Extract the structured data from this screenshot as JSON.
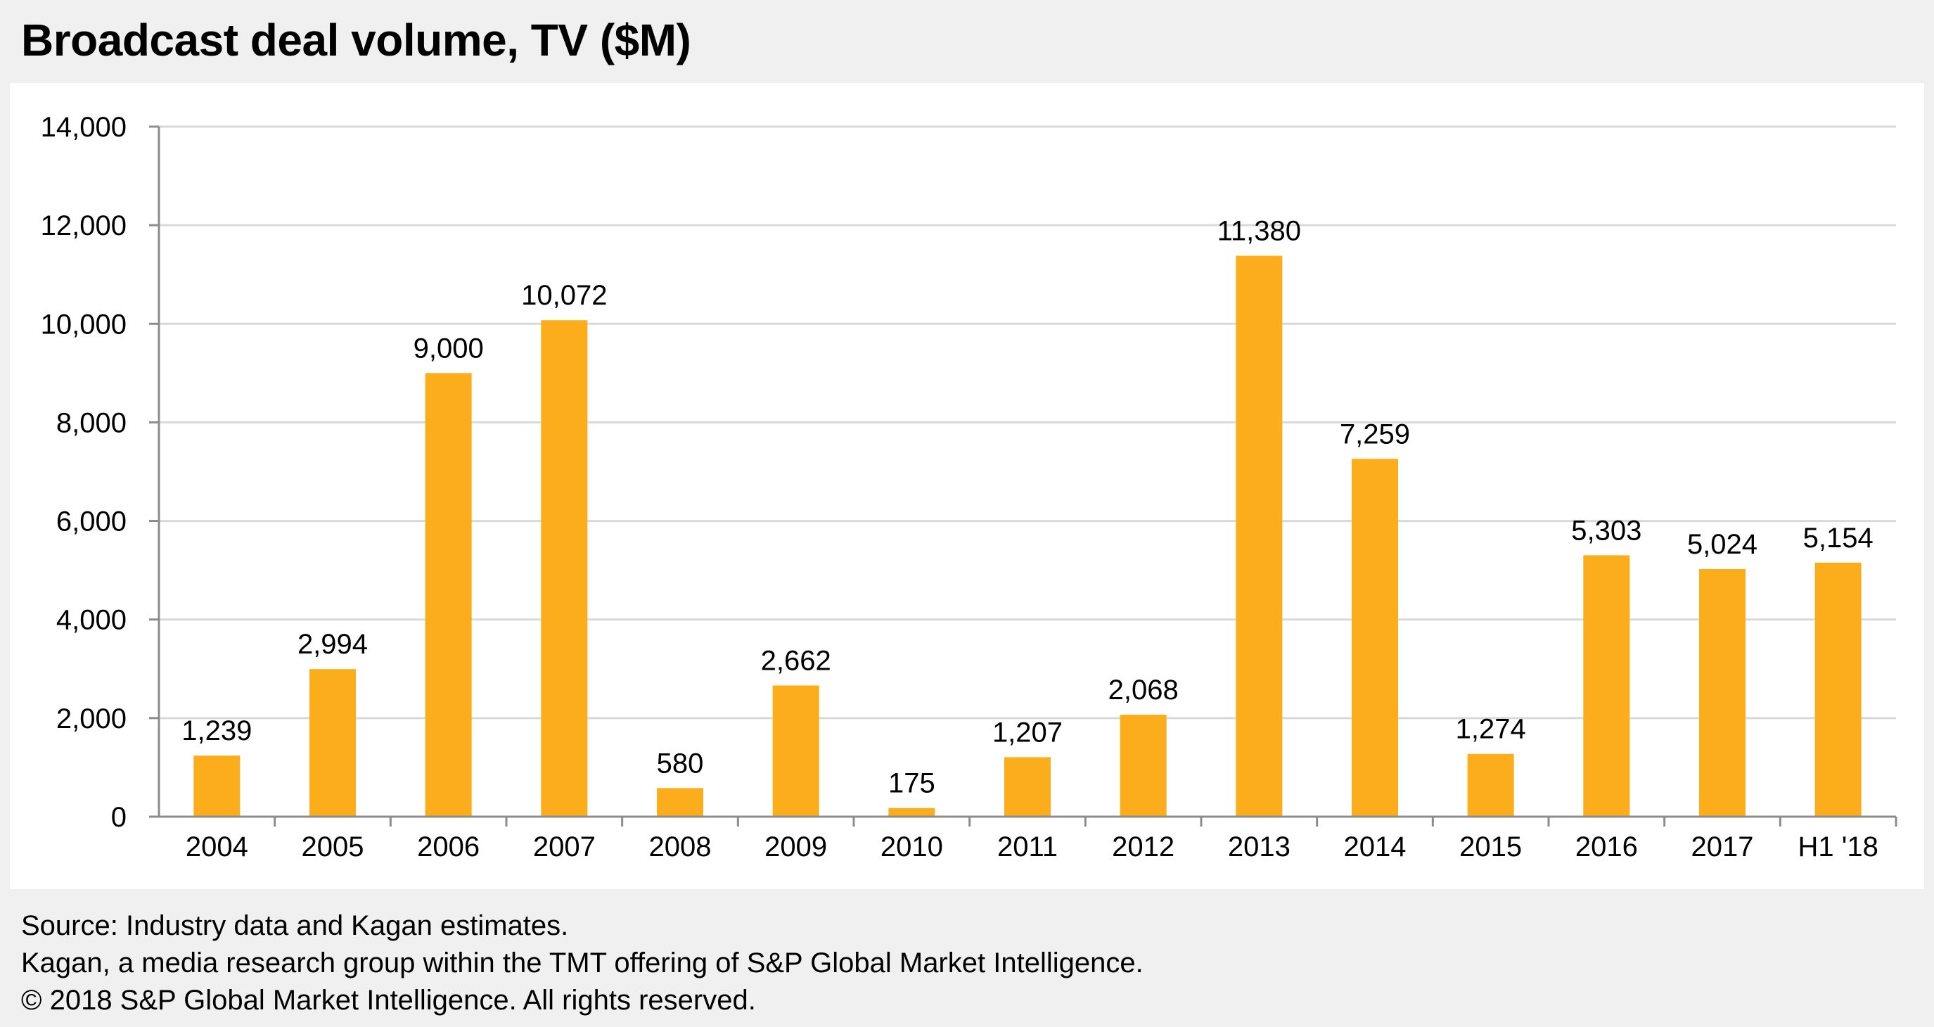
{
  "title": "Broadcast deal volume, TV ($M)",
  "footer": {
    "line1": "Source: Industry data and Kagan estimates.",
    "line2": "Kagan, a media research group within the TMT offering of S&P Global Market Intelligence.",
    "line3": "© 2018 S&P Global Market Intelligence. All rights reserved."
  },
  "colors": {
    "bar": "#fcad1c",
    "grid": "#d9d9d9",
    "axis": "#8c8c8c",
    "background": "#f0f0f0",
    "panel": "#ffffff"
  },
  "chart_data": {
    "type": "bar",
    "title": "Broadcast deal volume, TV ($M)",
    "categories": [
      "2004",
      "2005",
      "2006",
      "2007",
      "2008",
      "2009",
      "2010",
      "2011",
      "2012",
      "2013",
      "2014",
      "2015",
      "2016",
      "2017",
      "H1 '18"
    ],
    "values": [
      1239,
      2994,
      9000,
      10072,
      580,
      2662,
      175,
      1207,
      2068,
      11380,
      7259,
      1274,
      5303,
      5024,
      5154
    ],
    "value_labels": [
      "1,239",
      "2,994",
      "9,000",
      "10,072",
      "580",
      "2,662",
      "175",
      "1,207",
      "2,068",
      "11,380",
      "7,259",
      "1,274",
      "5,303",
      "5,024",
      "5,154"
    ],
    "yticks": [
      0,
      2000,
      4000,
      6000,
      8000,
      10000,
      12000,
      14000
    ],
    "ytick_labels": [
      "0",
      "2,000",
      "4,000",
      "6,000",
      "8,000",
      "10,000",
      "12,000",
      "14,000"
    ],
    "ylim": [
      0,
      14000
    ],
    "grid": true,
    "legend": false
  }
}
